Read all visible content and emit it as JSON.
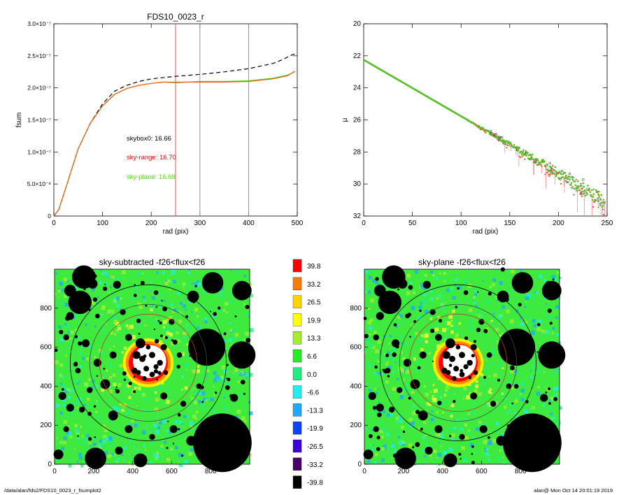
{
  "footer": {
    "path": "/data/alan/fds2/FDS10_0023_r_fsumplot2",
    "stamp": "alan@  Mon Oct 14 20:01:19 2019"
  },
  "colors": {
    "data": "#f25a1a",
    "skyrange": "#f00000",
    "skyplane": "#44dd00",
    "dash": "#000000",
    "vline_red": "#ff3333",
    "vline_gray": "#888888"
  },
  "chart_data": [
    {
      "id": "growth",
      "type": "line",
      "title": "FDS10_0023_r",
      "xlabel": "rad (pix)",
      "ylabel": "fsum",
      "xlim": [
        0,
        500
      ],
      "ylim": [
        0,
        3e-07
      ],
      "xticks": [
        {
          "v": 0,
          "t": "0"
        },
        {
          "v": 100,
          "t": "100"
        },
        {
          "v": 200,
          "t": "200"
        },
        {
          "v": 300,
          "t": "300"
        },
        {
          "v": 400,
          "t": "400"
        },
        {
          "v": 500,
          "t": "500"
        }
      ],
      "yticks": [
        {
          "v": 0,
          "t": "0"
        },
        {
          "v": 5e-08,
          "t": "5.0×10⁻⁸"
        },
        {
          "v": 1e-07,
          "t": "1.0×10⁻⁷"
        },
        {
          "v": 1.5e-07,
          "t": "1.5×10⁻⁷"
        },
        {
          "v": 2e-07,
          "t": "2.0×10⁻⁷"
        },
        {
          "v": 2.5e-07,
          "t": "2.5×10⁻⁷"
        },
        {
          "v": 3e-07,
          "t": "3.0×10⁻⁷"
        }
      ],
      "vlines": [
        {
          "x": 250,
          "color": "#ff3333"
        },
        {
          "x": 300,
          "color": "#888888"
        },
        {
          "x": 400,
          "color": "#888888"
        }
      ],
      "series": [
        {
          "style": "dashed",
          "color": "#000000",
          "x": [
            0,
            10,
            25,
            50,
            75,
            100,
            125,
            150,
            175,
            200,
            250,
            300,
            350,
            400,
            450,
            470,
            485,
            495
          ],
          "y": [
            0,
            1e-08,
            4.5e-08,
            1.05e-07,
            1.45e-07,
            1.75e-07,
            1.95e-07,
            2.04e-07,
            2.1e-07,
            2.14e-07,
            2.18e-07,
            2.21e-07,
            2.25e-07,
            2.3e-07,
            2.38e-07,
            2.44e-07,
            2.5e-07,
            2.53e-07
          ]
        },
        {
          "style": "solid",
          "color": "#44dd00",
          "x": [
            0,
            10,
            25,
            50,
            75,
            100,
            125,
            150,
            175,
            200,
            225,
            250,
            275,
            300,
            350,
            400,
            450,
            480,
            495
          ],
          "y": [
            0,
            1e-08,
            4.5e-08,
            1.05e-07,
            1.45e-07,
            1.72e-07,
            1.9e-07,
            1.99e-07,
            2.04e-07,
            2.07e-07,
            2.09e-07,
            2.09e-07,
            2.09e-07,
            2.1e-07,
            2.1e-07,
            2.11e-07,
            2.15e-07,
            2.2e-07,
            2.25e-07
          ]
        },
        {
          "style": "solid",
          "color": "#f25a1a",
          "x": [
            0,
            10,
            25,
            50,
            75,
            100,
            125,
            150,
            175,
            200,
            225,
            250,
            275,
            300,
            350,
            400,
            450,
            480,
            495
          ],
          "y": [
            0,
            1e-08,
            4.5e-08,
            1.05e-07,
            1.45e-07,
            1.72e-07,
            1.9e-07,
            1.99e-07,
            2.04e-07,
            2.07e-07,
            2.09e-07,
            2.08e-07,
            2.09e-07,
            2.09e-07,
            2.09e-07,
            2.1e-07,
            2.14e-07,
            2.19e-07,
            2.26e-07
          ]
        }
      ],
      "annotations": [
        {
          "text": "skybox0: 16.66",
          "color": "#000000"
        },
        {
          "text": "sky-range: 16.70",
          "color": "#f00000"
        },
        {
          "text": "sky-plane: 16.69",
          "color": "#44dd00"
        }
      ]
    },
    {
      "id": "profile",
      "type": "scatter",
      "title": "",
      "xlabel": "rad (pix)",
      "ylabel": "μ",
      "xlim": [
        0,
        250
      ],
      "ylim": [
        32,
        20
      ],
      "xticks": [
        {
          "v": 0,
          "t": "0"
        },
        {
          "v": 50,
          "t": "50"
        },
        {
          "v": 100,
          "t": "100"
        },
        {
          "v": 150,
          "t": "150"
        },
        {
          "v": 200,
          "t": "200"
        },
        {
          "v": 250,
          "t": "250"
        }
      ],
      "yticks": [
        {
          "v": 20,
          "t": "20"
        },
        {
          "v": 22,
          "t": "22"
        },
        {
          "v": 24,
          "t": "24"
        },
        {
          "v": 26,
          "t": "26"
        },
        {
          "v": 28,
          "t": "28"
        },
        {
          "v": 30,
          "t": "30"
        },
        {
          "v": 32,
          "t": "32"
        }
      ],
      "series": [
        {
          "style": "points",
          "color": "#44dd00",
          "x": [
            0,
            25,
            50,
            75,
            100,
            125,
            150,
            175,
            200,
            225,
            250
          ],
          "y": [
            22.2,
            23.1,
            24.0,
            24.8,
            25.6,
            26.4,
            27.1,
            27.8,
            28.4,
            28.9,
            29.3
          ]
        }
      ]
    },
    {
      "id": "img-sky-subtracted",
      "type": "heatmap",
      "title": "sky-subtracted -f26<flux<f26",
      "xlim": [
        0,
        1000
      ],
      "ylim": [
        0,
        1000
      ],
      "xticks": [
        {
          "v": 0,
          "t": "0"
        },
        {
          "v": 200,
          "t": "200"
        },
        {
          "v": 400,
          "t": "400"
        },
        {
          "v": 600,
          "t": "600"
        },
        {
          "v": 800,
          "t": "800"
        }
      ],
      "yticks": [
        {
          "v": 0,
          "t": "0"
        },
        {
          "v": 200,
          "t": "200"
        },
        {
          "v": 400,
          "t": "400"
        },
        {
          "v": 600,
          "t": "600"
        },
        {
          "v": 800,
          "t": "800"
        }
      ]
    },
    {
      "id": "img-sky-plane",
      "type": "heatmap",
      "title": "sky-plane -f26<flux<f26",
      "xlim": [
        0,
        1000
      ],
      "ylim": [
        0,
        1000
      ],
      "xticks": [
        {
          "v": 0,
          "t": "0"
        },
        {
          "v": 200,
          "t": "200"
        },
        {
          "v": 400,
          "t": "400"
        },
        {
          "v": 600,
          "t": "600"
        },
        {
          "v": 800,
          "t": "800"
        }
      ],
      "yticks": [
        {
          "v": 0,
          "t": "0"
        },
        {
          "v": 200,
          "t": "200"
        },
        {
          "v": 400,
          "t": "400"
        },
        {
          "v": 600,
          "t": "600"
        },
        {
          "v": 800,
          "t": "800"
        }
      ]
    },
    {
      "id": "colorbar",
      "type": "table",
      "levels": [
        {
          "label": "39.8",
          "color": "#ff0000"
        },
        {
          "label": "33.2",
          "color": "#ff7a00"
        },
        {
          "label": "26.5",
          "color": "#ffd400"
        },
        {
          "label": "19.9",
          "color": "#ffff00"
        },
        {
          "label": "13.3",
          "color": "#a5ee2d"
        },
        {
          "label": "6.6",
          "color": "#22ee22"
        },
        {
          "label": "0.0",
          "color": "#22ee80"
        },
        {
          "label": "-6.6",
          "color": "#22eeee"
        },
        {
          "label": "-13.3",
          "color": "#1fa8ff"
        },
        {
          "label": "-19.9",
          "color": "#0a44ff"
        },
        {
          "label": "-26.5",
          "color": "#3a00dd"
        },
        {
          "label": "-33.2",
          "color": "#4a0066"
        },
        {
          "label": "-39.8",
          "color": "#000000"
        }
      ]
    }
  ]
}
